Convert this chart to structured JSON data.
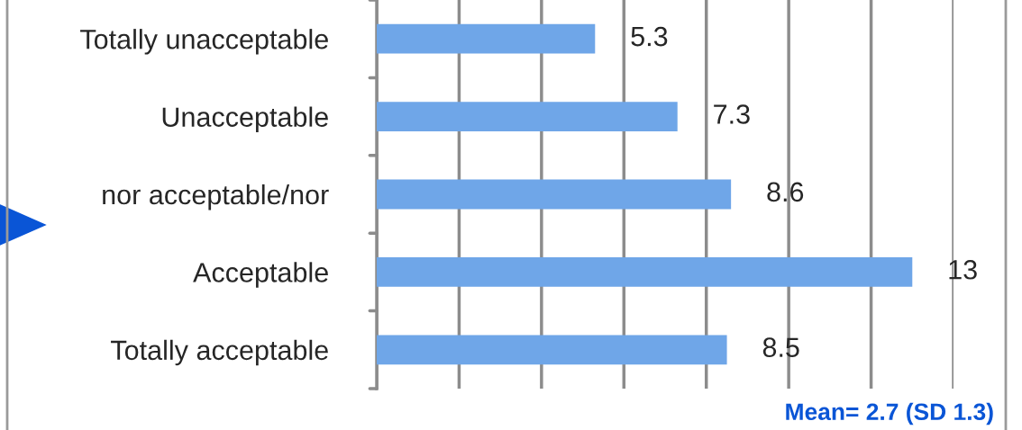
{
  "chart_data": {
    "type": "bar",
    "orientation": "horizontal",
    "categories": [
      "Totally unacceptable",
      "Unacceptable",
      "nor acceptable/nor",
      "Acceptable",
      "Totally acceptable"
    ],
    "values": [
      5.3,
      7.3,
      8.6,
      13,
      8.5
    ],
    "color": "#6fa6e8",
    "data_labels": true,
    "xlim": [
      0,
      14
    ],
    "xticks": [
      {
        "value": 0,
        "label": null
      },
      {
        "value": 2,
        "label": null
      },
      {
        "value": 4,
        "label": null
      },
      {
        "value": 6,
        "label": null
      },
      {
        "value": 8,
        "label": null
      },
      {
        "value": 10,
        "label": null
      },
      {
        "value": 12,
        "label": null
      },
      {
        "value": 14,
        "label": null
      }
    ],
    "tick_labels": "y",
    "grid": "x",
    "annotations": [
      "Mean= 2.7 (SD 1.3)"
    ]
  }
}
